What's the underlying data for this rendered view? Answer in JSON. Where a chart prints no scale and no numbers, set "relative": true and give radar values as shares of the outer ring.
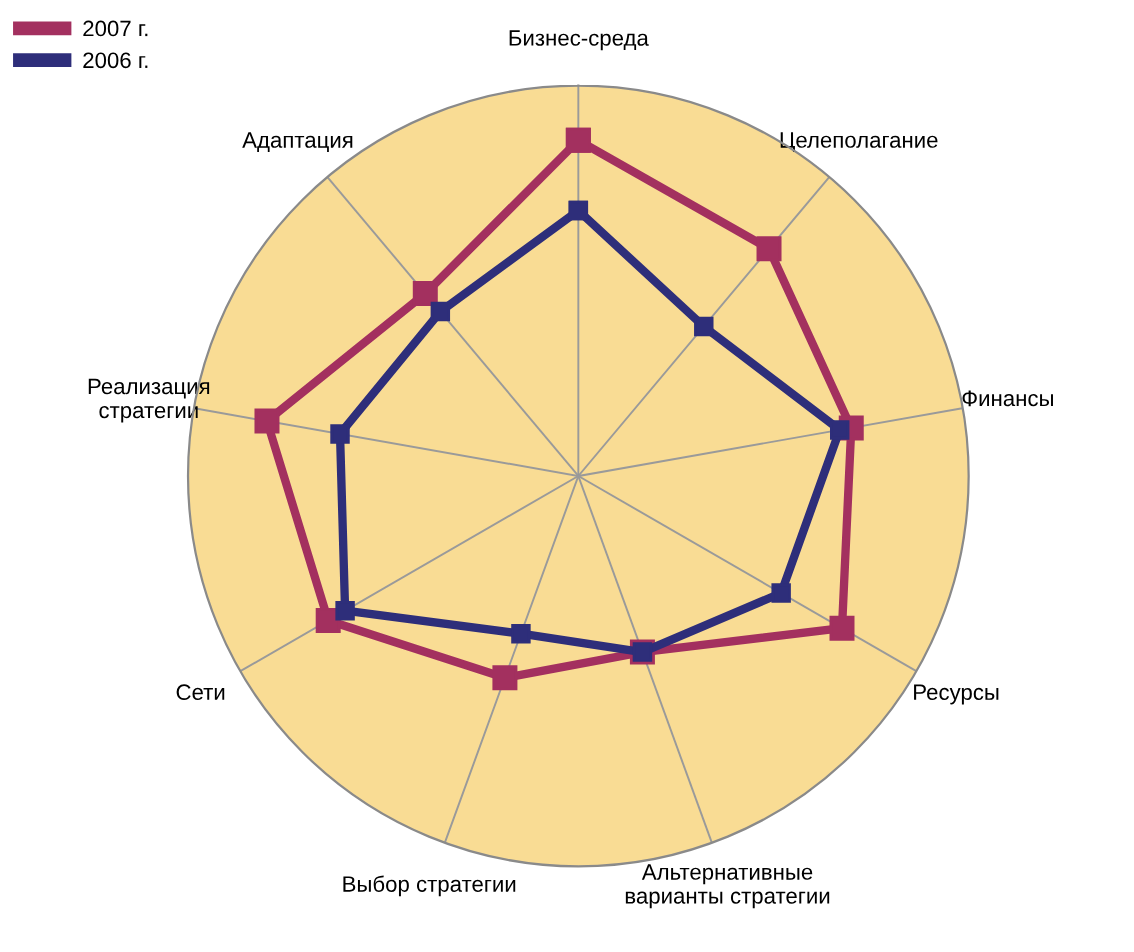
{
  "chart_data": {
    "type": "radar",
    "relative": true,
    "categories": [
      "Бизнес-среда",
      "Целеполагание",
      "Финансы",
      "Ресурсы",
      "Альтернативные\nварианты стратегии",
      "Выбор стратегии",
      "Сети",
      "Реализация\nстратегии",
      "Адаптация"
    ],
    "series": [
      {
        "name": "2007 г.",
        "color": "#a3305f",
        "values": [
          0.86,
          0.76,
          0.71,
          0.78,
          0.48,
          0.55,
          0.74,
          0.81,
          0.61
        ]
      },
      {
        "name": "2006 г.",
        "color": "#2e2e7a",
        "values": [
          0.68,
          0.5,
          0.68,
          0.6,
          0.48,
          0.43,
          0.69,
          0.62,
          0.55
        ]
      }
    ],
    "marker": "square",
    "legend": "top left",
    "grid": true
  }
}
